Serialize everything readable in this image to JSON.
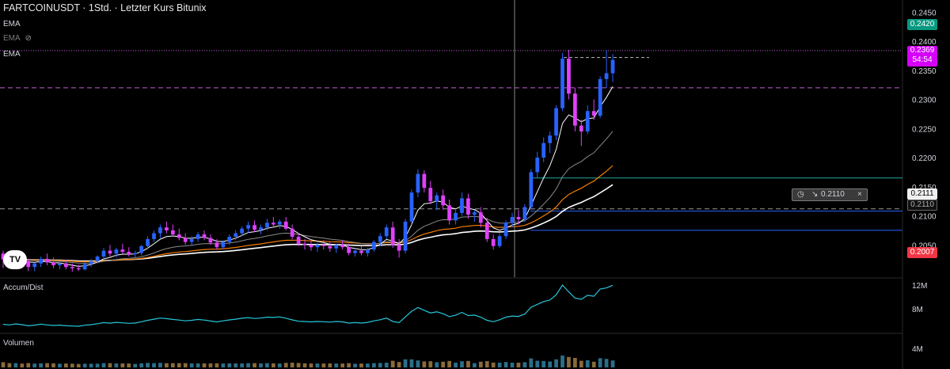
{
  "header": {
    "title": "FARTCOINUSDT · 1Std. · Letzter Kurs Bitunix",
    "ema_labels": [
      "EMA",
      "EMA",
      "EMA"
    ]
  },
  "panels": {
    "accum": "Accum/Dist",
    "volume": "Volumen"
  },
  "price_axis": {
    "ticks": [
      "0.2450",
      "0.2400",
      "0.2350",
      "0.2300",
      "0.2250",
      "0.2200",
      "0.2150",
      "0.2100",
      "0.2050"
    ],
    "tag_green": "0.2420",
    "tag_last": "0.2369",
    "tag_countdown": "54:54",
    "tag_white": "0.2111",
    "tag_grey": "0.2110",
    "tag_red": "0.2007"
  },
  "accum_axis": {
    "ticks": [
      "12M",
      "8M"
    ]
  },
  "volume_axis": {
    "ticks": [
      "4M"
    ]
  },
  "alert": {
    "arrow": "↘",
    "value": "0.2110",
    "close": "×"
  },
  "colors": {
    "up": "#2962ff",
    "down": "#e040fb",
    "ema_fast": "#ffffff",
    "ema_orange": "#f57c00",
    "ema_grey": "#8a8a8a",
    "accum_line": "#26c6da",
    "hline_teal": "#26a69a",
    "hline_blue": "#2962ff"
  },
  "chart_data": {
    "type": "candlestick",
    "ylim": [
      0.2,
      0.246
    ],
    "candles": [
      [
        0.2035,
        0.204,
        0.201,
        0.2025
      ],
      [
        0.2025,
        0.2032,
        0.2012,
        0.202
      ],
      [
        0.202,
        0.203,
        0.201,
        0.2028
      ],
      [
        0.2028,
        0.2035,
        0.202,
        0.2022
      ],
      [
        0.2022,
        0.2026,
        0.2005,
        0.2012
      ],
      [
        0.2012,
        0.202,
        0.2005,
        0.2018
      ],
      [
        0.2018,
        0.203,
        0.2012,
        0.2026
      ],
      [
        0.2026,
        0.2035,
        0.2015,
        0.202
      ],
      [
        0.202,
        0.2028,
        0.201,
        0.2015
      ],
      [
        0.2015,
        0.2022,
        0.2008,
        0.2018
      ],
      [
        0.2018,
        0.2024,
        0.2008,
        0.2012
      ],
      [
        0.2012,
        0.2018,
        0.2004,
        0.201
      ],
      [
        0.201,
        0.2016,
        0.2005,
        0.2008
      ],
      [
        0.2008,
        0.202,
        0.2006,
        0.2017
      ],
      [
        0.2017,
        0.2026,
        0.2012,
        0.2022
      ],
      [
        0.2022,
        0.2032,
        0.2018,
        0.203
      ],
      [
        0.203,
        0.2045,
        0.2025,
        0.204
      ],
      [
        0.204,
        0.205,
        0.203,
        0.2035
      ],
      [
        0.2035,
        0.2045,
        0.2028,
        0.2042
      ],
      [
        0.2042,
        0.2052,
        0.2035,
        0.2038
      ],
      [
        0.2038,
        0.2046,
        0.203,
        0.2034
      ],
      [
        0.2034,
        0.204,
        0.2028,
        0.2036
      ],
      [
        0.2036,
        0.205,
        0.2032,
        0.2048
      ],
      [
        0.2048,
        0.2065,
        0.2042,
        0.206
      ],
      [
        0.206,
        0.2075,
        0.2055,
        0.207
      ],
      [
        0.207,
        0.2085,
        0.2062,
        0.208
      ],
      [
        0.208,
        0.209,
        0.207,
        0.2075
      ],
      [
        0.2075,
        0.2085,
        0.2065,
        0.2068
      ],
      [
        0.2068,
        0.2078,
        0.2058,
        0.2062
      ],
      [
        0.2062,
        0.207,
        0.205,
        0.2055
      ],
      [
        0.2055,
        0.2065,
        0.2048,
        0.206
      ],
      [
        0.206,
        0.2072,
        0.2055,
        0.2068
      ],
      [
        0.2068,
        0.2075,
        0.2058,
        0.2062
      ],
      [
        0.2062,
        0.2068,
        0.205,
        0.2054
      ],
      [
        0.2054,
        0.206,
        0.2042,
        0.2046
      ],
      [
        0.2046,
        0.2058,
        0.2042,
        0.2055
      ],
      [
        0.2055,
        0.2068,
        0.205,
        0.2064
      ],
      [
        0.2064,
        0.2075,
        0.2058,
        0.207
      ],
      [
        0.207,
        0.2082,
        0.2065,
        0.2078
      ],
      [
        0.2078,
        0.209,
        0.207,
        0.2084
      ],
      [
        0.2084,
        0.2092,
        0.2072,
        0.2076
      ],
      [
        0.2076,
        0.2085,
        0.2068,
        0.208
      ],
      [
        0.208,
        0.2095,
        0.2075,
        0.2088
      ],
      [
        0.2088,
        0.2098,
        0.208,
        0.2085
      ],
      [
        0.2085,
        0.2094,
        0.2078,
        0.209
      ],
      [
        0.209,
        0.2098,
        0.2075,
        0.2078
      ],
      [
        0.2078,
        0.2085,
        0.206,
        0.2064
      ],
      [
        0.2064,
        0.207,
        0.2048,
        0.2052
      ],
      [
        0.2052,
        0.206,
        0.2042,
        0.205
      ],
      [
        0.205,
        0.2056,
        0.204,
        0.2046
      ],
      [
        0.2046,
        0.2054,
        0.2038,
        0.205
      ],
      [
        0.205,
        0.2058,
        0.2042,
        0.2048
      ],
      [
        0.2048,
        0.2055,
        0.2038,
        0.2044
      ],
      [
        0.2044,
        0.2052,
        0.2036,
        0.205
      ],
      [
        0.205,
        0.2058,
        0.2042,
        0.2046
      ],
      [
        0.2046,
        0.2052,
        0.2032,
        0.2036
      ],
      [
        0.2036,
        0.2044,
        0.203,
        0.204
      ],
      [
        0.204,
        0.2048,
        0.2032,
        0.2036
      ],
      [
        0.2036,
        0.2045,
        0.203,
        0.2042
      ],
      [
        0.2042,
        0.2058,
        0.2038,
        0.2055
      ],
      [
        0.2055,
        0.207,
        0.2048,
        0.2065
      ],
      [
        0.2065,
        0.2085,
        0.206,
        0.208
      ],
      [
        0.208,
        0.209,
        0.2045,
        0.205
      ],
      [
        0.205,
        0.206,
        0.2028,
        0.204
      ],
      [
        0.204,
        0.2095,
        0.2035,
        0.209
      ],
      [
        0.209,
        0.2145,
        0.2085,
        0.214
      ],
      [
        0.214,
        0.218,
        0.2132,
        0.2172
      ],
      [
        0.2172,
        0.2178,
        0.214,
        0.2148
      ],
      [
        0.2148,
        0.216,
        0.212,
        0.2125
      ],
      [
        0.2125,
        0.214,
        0.211,
        0.2135
      ],
      [
        0.2135,
        0.2145,
        0.211,
        0.2118
      ],
      [
        0.2118,
        0.2128,
        0.2085,
        0.2092
      ],
      [
        0.2092,
        0.211,
        0.2085,
        0.2105
      ],
      [
        0.2105,
        0.214,
        0.21,
        0.213
      ],
      [
        0.213,
        0.2138,
        0.2095,
        0.2102
      ],
      [
        0.2102,
        0.211,
        0.209,
        0.2106
      ],
      [
        0.2106,
        0.2115,
        0.208,
        0.2088
      ],
      [
        0.2088,
        0.2096,
        0.2055,
        0.206
      ],
      [
        0.206,
        0.2068,
        0.2042,
        0.2048
      ],
      [
        0.2048,
        0.207,
        0.2045,
        0.2065
      ],
      [
        0.2065,
        0.2092,
        0.206,
        0.2088
      ],
      [
        0.2088,
        0.2105,
        0.208,
        0.2098
      ],
      [
        0.2098,
        0.211,
        0.2085,
        0.2094
      ],
      [
        0.2094,
        0.212,
        0.209,
        0.2115
      ],
      [
        0.2115,
        0.218,
        0.211,
        0.2175
      ],
      [
        0.2175,
        0.221,
        0.2165,
        0.22
      ],
      [
        0.22,
        0.2235,
        0.2192,
        0.2225
      ],
      [
        0.2225,
        0.2245,
        0.2208,
        0.2238
      ],
      [
        0.2238,
        0.229,
        0.223,
        0.2285
      ],
      [
        0.2285,
        0.238,
        0.228,
        0.237
      ],
      [
        0.237,
        0.2385,
        0.23,
        0.231
      ],
      [
        0.231,
        0.232,
        0.2245,
        0.2255
      ],
      [
        0.2255,
        0.2265,
        0.222,
        0.2245
      ],
      [
        0.2245,
        0.229,
        0.224,
        0.228
      ],
      [
        0.228,
        0.23,
        0.2265,
        0.2272
      ],
      [
        0.2272,
        0.234,
        0.2268,
        0.2335
      ],
      [
        0.2335,
        0.2385,
        0.232,
        0.2345
      ],
      [
        0.2345,
        0.2378,
        0.233,
        0.2368
      ]
    ],
    "horizontal_lines": [
      0.238,
      0.232,
      0.2112,
      0.2165,
      0.2112,
      0.2075
    ]
  }
}
